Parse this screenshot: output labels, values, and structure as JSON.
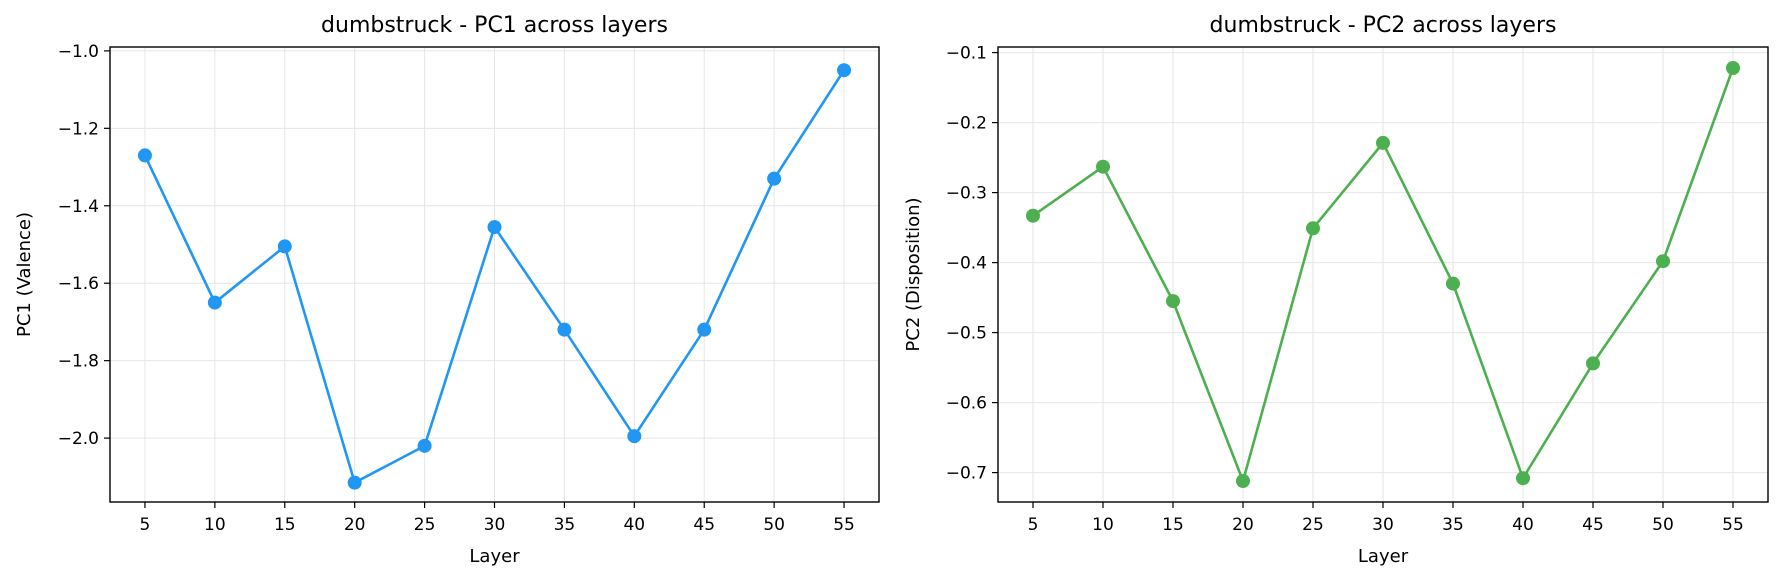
{
  "chart_data": [
    {
      "type": "line",
      "title": "dumbstruck - PC1 across layers",
      "xlabel": "Layer",
      "ylabel": "PC1 (Valence)",
      "x": [
        5,
        10,
        15,
        20,
        25,
        30,
        35,
        40,
        45,
        50,
        55
      ],
      "series": [
        {
          "values": [
            -1.27,
            -1.65,
            -1.505,
            -2.115,
            -2.02,
            -1.455,
            -1.72,
            -1.995,
            -1.72,
            -1.33,
            -1.05
          ],
          "color": "#2196f3"
        }
      ],
      "xlim": [
        2.5,
        57.5
      ],
      "ylim": [
        -2.165,
        -0.99
      ],
      "xticks": [
        "5",
        "10",
        "15",
        "20",
        "25",
        "30",
        "35",
        "40",
        "45",
        "50",
        "55"
      ],
      "yticks": [
        "−2.0",
        "−1.8",
        "−1.6",
        "−1.4",
        "−1.2",
        "−1.0"
      ],
      "ytick_values": [
        -2.0,
        -1.8,
        -1.6,
        -1.4,
        -1.2,
        -1.0
      ],
      "grid": true
    },
    {
      "type": "line",
      "title": "dumbstruck - PC2 across layers",
      "xlabel": "Layer",
      "ylabel": "PC2 (Disposition)",
      "x": [
        5,
        10,
        15,
        20,
        25,
        30,
        35,
        40,
        45,
        50,
        55
      ],
      "series": [
        {
          "values": [
            -0.333,
            -0.263,
            -0.455,
            -0.712,
            -0.351,
            -0.229,
            -0.43,
            -0.708,
            -0.544,
            -0.398,
            -0.122
          ],
          "color": "#4caf50"
        }
      ],
      "xlim": [
        2.5,
        57.5
      ],
      "ylim": [
        -0.742,
        -0.092
      ],
      "xticks": [
        "5",
        "10",
        "15",
        "20",
        "25",
        "30",
        "35",
        "40",
        "45",
        "50",
        "55"
      ],
      "yticks": [
        "−0.7",
        "−0.6",
        "−0.5",
        "−0.4",
        "−0.3",
        "−0.2",
        "−0.1"
      ],
      "ytick_values": [
        -0.7,
        -0.6,
        -0.5,
        -0.4,
        -0.3,
        -0.2,
        -0.1
      ],
      "grid": true
    }
  ]
}
